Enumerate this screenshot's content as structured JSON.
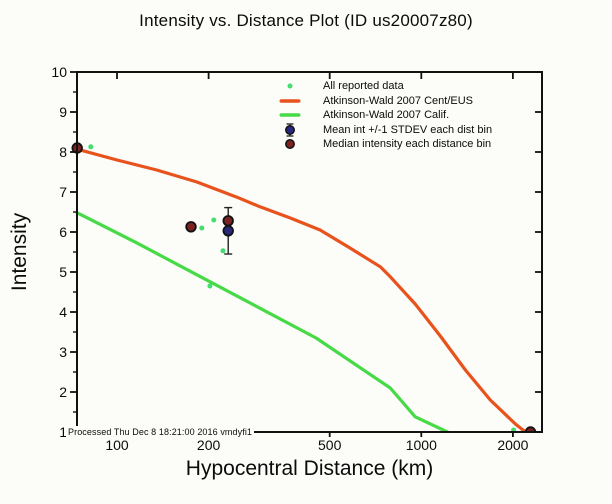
{
  "title": "Intensity vs. Distance Plot (ID us20007z80)",
  "axis": {
    "xlabel": "Hypocentral Distance (km)",
    "ylabel": "Intensity"
  },
  "note": "Processed Thu Dec  8 18:21:00 2016 vmdyfi1",
  "colors": {
    "background": "#fcfcf8",
    "frame": "#111111",
    "all_data_dot": "#43dd70",
    "ceus_line": "#e8521c",
    "calif_line": "#46da46",
    "mean_point": "#28287e",
    "median_point": "#7b2222"
  },
  "legend": {
    "items": [
      {
        "label": "All reported data",
        "marker": "dot",
        "color": "#43dd70"
      },
      {
        "label": "Atkinson-Wald 2007 Cent/EUS",
        "marker": "line",
        "color": "#e8521c"
      },
      {
        "label": "Atkinson-Wald 2007 Calif.",
        "marker": "line",
        "color": "#46da46"
      },
      {
        "label": "Mean int +/-1 STDEV each dist bin",
        "marker": "circle-errorbar",
        "color": "#28287e"
      },
      {
        "label": "Median intensity each distance bin",
        "marker": "circle",
        "color": "#7b2222"
      }
    ]
  },
  "chart_data": {
    "type": "line",
    "title": "Intensity vs. Distance Plot (ID us20007z80)",
    "xlabel": "Hypocentral Distance (km)",
    "ylabel": "Intensity",
    "x_scale": "log",
    "xlim": [
      74,
      2500
    ],
    "ylim": [
      1,
      10
    ],
    "xticks": [
      100,
      200,
      500,
      1000,
      2000
    ],
    "yticks": [
      1,
      2,
      3,
      4,
      5,
      6,
      7,
      8,
      9,
      10
    ],
    "grid": false,
    "legend_position": "top-center-inside",
    "series": [
      {
        "name": "All reported data",
        "type": "scatter",
        "color": "#43dd70",
        "points": [
          [
            82,
            8.13
          ],
          [
            190,
            6.1
          ],
          [
            208,
            6.3
          ],
          [
            223,
            5.53
          ],
          [
            202,
            4.65
          ],
          [
            2010,
            1.05
          ]
        ]
      },
      {
        "name": "Atkinson-Wald 2007 Cent/EUS",
        "type": "line",
        "color": "#e8521c",
        "points": [
          [
            74,
            8.07
          ],
          [
            100,
            7.8
          ],
          [
            135,
            7.55
          ],
          [
            183,
            7.25
          ],
          [
            248,
            6.87
          ],
          [
            295,
            6.63
          ],
          [
            371,
            6.35
          ],
          [
            465,
            6.05
          ],
          [
            583,
            5.6
          ],
          [
            733,
            5.13
          ],
          [
            791,
            4.88
          ],
          [
            955,
            4.2
          ],
          [
            1155,
            3.4
          ],
          [
            1396,
            2.55
          ],
          [
            1686,
            1.8
          ],
          [
            2038,
            1.2
          ],
          [
            2200,
            1.0
          ]
        ]
      },
      {
        "name": "Atkinson-Wald 2007 Calif.",
        "type": "line",
        "color": "#46da46",
        "points": [
          [
            74,
            6.48
          ],
          [
            116,
            5.73
          ],
          [
            183,
            4.93
          ],
          [
            289,
            4.13
          ],
          [
            451,
            3.35
          ],
          [
            791,
            2.1
          ],
          [
            955,
            1.38
          ],
          [
            1218,
            1.0
          ]
        ]
      },
      {
        "name": "Mean int +/-1 STDEV each dist bin",
        "type": "point-error",
        "color": "#28287e",
        "points": [
          [
            232,
            6.03,
            0.58
          ]
        ]
      },
      {
        "name": "Median intensity each distance bin",
        "type": "point",
        "color": "#7b2222",
        "points": [
          [
            74,
            8.1
          ],
          [
            175,
            6.13
          ],
          [
            232,
            6.28
          ],
          [
            2284,
            1.0
          ]
        ]
      }
    ]
  }
}
